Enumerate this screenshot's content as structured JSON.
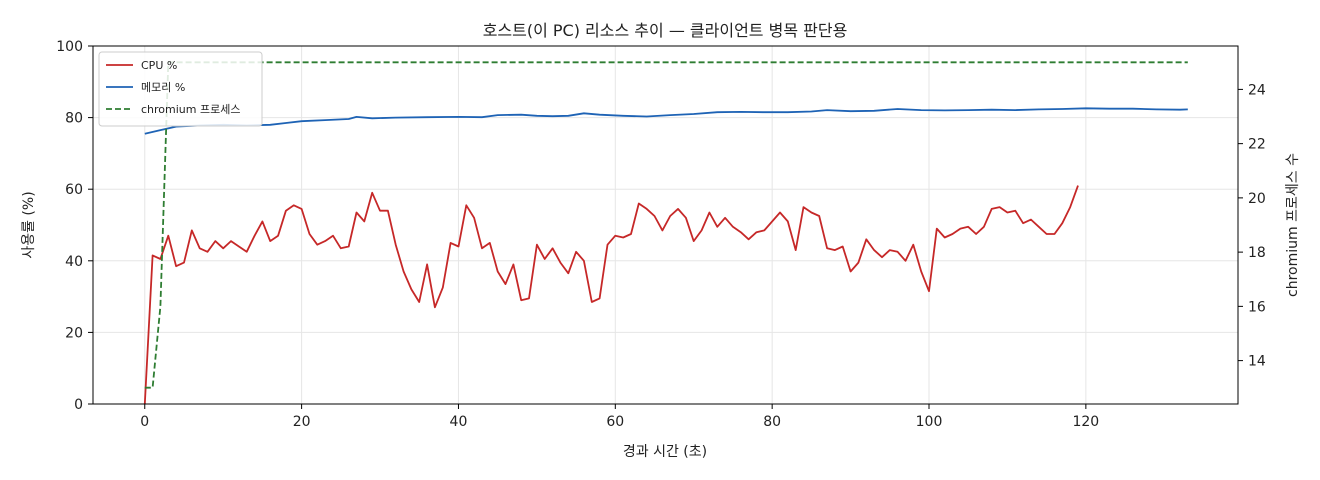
{
  "chart_data": {
    "type": "line",
    "title": "호스트(이 PC) 리소스 추이 — 클라이언트 병목 판단용",
    "xlabel": "경과 시간 (초)",
    "ylabel": "사용률 (%)",
    "y2label": "chromium 프로세스 수",
    "xlim": [
      -6.6,
      139.4
    ],
    "ylim": [
      0,
      100
    ],
    "y2lim": [
      12.4,
      25.6
    ],
    "xticks": [
      0,
      20,
      40,
      60,
      80,
      100,
      120
    ],
    "yticks": [
      0,
      20,
      40,
      60,
      80,
      100
    ],
    "y2ticks": [
      14,
      16,
      18,
      20,
      22,
      24
    ],
    "grid": true,
    "legend": "top-left",
    "series": [
      {
        "name": "CPU %",
        "axis": "left",
        "color": "#c62828",
        "style": "solid",
        "points": [
          [
            0,
            0
          ],
          [
            1,
            41.5
          ],
          [
            2,
            40.5
          ],
          [
            3,
            47
          ],
          [
            4,
            38.5
          ],
          [
            5,
            39.5
          ],
          [
            6,
            48.5
          ],
          [
            7,
            43.5
          ],
          [
            8,
            42.5
          ],
          [
            9,
            45.5
          ],
          [
            10,
            43.5
          ],
          [
            11,
            45.5
          ],
          [
            12,
            44
          ],
          [
            13,
            42.5
          ],
          [
            14,
            47
          ],
          [
            15,
            51
          ],
          [
            16,
            45.5
          ],
          [
            17,
            47
          ],
          [
            18,
            54
          ],
          [
            19,
            55.5
          ],
          [
            20,
            54.5
          ],
          [
            21,
            47.5
          ],
          [
            22,
            44.5
          ],
          [
            23,
            45.5
          ],
          [
            24,
            47
          ],
          [
            25,
            43.5
          ],
          [
            26,
            44
          ],
          [
            27,
            53.5
          ],
          [
            28,
            51
          ],
          [
            29,
            59
          ],
          [
            30,
            54
          ],
          [
            31,
            54
          ],
          [
            32,
            44.5
          ],
          [
            33,
            37
          ],
          [
            34,
            32
          ],
          [
            35,
            28.5
          ],
          [
            36,
            39
          ],
          [
            37,
            27
          ],
          [
            38,
            32.5
          ],
          [
            39,
            45
          ],
          [
            40,
            44
          ],
          [
            41,
            55.5
          ],
          [
            42,
            52
          ],
          [
            43,
            43.5
          ],
          [
            44,
            45
          ],
          [
            45,
            37
          ],
          [
            46,
            33.5
          ],
          [
            47,
            39
          ],
          [
            48,
            29
          ],
          [
            49,
            29.5
          ],
          [
            50,
            44.5
          ],
          [
            51,
            40.5
          ],
          [
            52,
            43.5
          ],
          [
            53,
            39.5
          ],
          [
            54,
            36.5
          ],
          [
            55,
            42.5
          ],
          [
            56,
            40
          ],
          [
            57,
            28.5
          ],
          [
            58,
            29.5
          ],
          [
            59,
            44.5
          ],
          [
            60,
            47
          ],
          [
            61,
            46.5
          ],
          [
            62,
            47.5
          ],
          [
            63,
            56
          ],
          [
            64,
            54.5
          ],
          [
            65,
            52.5
          ],
          [
            66,
            48.5
          ],
          [
            67,
            52.5
          ],
          [
            68,
            54.5
          ],
          [
            69,
            52
          ],
          [
            70,
            45.5
          ],
          [
            71,
            48.5
          ],
          [
            72,
            53.5
          ],
          [
            73,
            49.5
          ],
          [
            74,
            52
          ],
          [
            75,
            49.5
          ],
          [
            76,
            48
          ],
          [
            77,
            46
          ],
          [
            78,
            48
          ],
          [
            79,
            48.5
          ],
          [
            80,
            51
          ],
          [
            81,
            53.5
          ],
          [
            82,
            51
          ],
          [
            83,
            43
          ],
          [
            84,
            55
          ],
          [
            85,
            53.5
          ],
          [
            86,
            52.5
          ],
          [
            87,
            43.5
          ],
          [
            88,
            43
          ],
          [
            89,
            44
          ],
          [
            90,
            37
          ],
          [
            91,
            39.5
          ],
          [
            92,
            46
          ],
          [
            93,
            43
          ],
          [
            94,
            41
          ],
          [
            95,
            43
          ],
          [
            96,
            42.5
          ],
          [
            97,
            40
          ],
          [
            98,
            44.5
          ],
          [
            99,
            37
          ],
          [
            100,
            31.5
          ],
          [
            101,
            49
          ],
          [
            102,
            46.5
          ],
          [
            103,
            47.5
          ],
          [
            104,
            49
          ],
          [
            105,
            49.5
          ],
          [
            106,
            47.5
          ],
          [
            107,
            49.5
          ],
          [
            108,
            54.5
          ],
          [
            109,
            55
          ],
          [
            110,
            53.5
          ],
          [
            111,
            54
          ],
          [
            112,
            50.5
          ],
          [
            113,
            51.5
          ],
          [
            114,
            49.5
          ],
          [
            115,
            47.5
          ],
          [
            116,
            47.5
          ],
          [
            117,
            50.5
          ],
          [
            118,
            55
          ],
          [
            119,
            61
          ]
        ]
      },
      {
        "name": "메모리 %",
        "axis": "left",
        "color": "#1e63b5",
        "style": "solid",
        "points": [
          [
            0,
            75.5
          ],
          [
            2,
            76.5
          ],
          [
            4,
            77.5
          ],
          [
            7,
            77.8
          ],
          [
            10,
            78
          ],
          [
            13,
            77.8
          ],
          [
            16,
            78
          ],
          [
            18,
            78.5
          ],
          [
            20,
            79
          ],
          [
            23,
            79.3
          ],
          [
            26,
            79.6
          ],
          [
            27,
            80.2
          ],
          [
            29,
            79.8
          ],
          [
            32,
            80
          ],
          [
            36,
            80.1
          ],
          [
            40,
            80.2
          ],
          [
            43,
            80.1
          ],
          [
            45,
            80.7
          ],
          [
            48,
            80.8
          ],
          [
            50,
            80.5
          ],
          [
            52,
            80.4
          ],
          [
            54,
            80.5
          ],
          [
            56,
            81.2
          ],
          [
            58,
            80.8
          ],
          [
            61,
            80.5
          ],
          [
            64,
            80.3
          ],
          [
            67,
            80.7
          ],
          [
            70,
            81
          ],
          [
            73,
            81.5
          ],
          [
            76,
            81.6
          ],
          [
            79,
            81.5
          ],
          [
            82,
            81.5
          ],
          [
            85,
            81.7
          ],
          [
            87,
            82.1
          ],
          [
            90,
            81.8
          ],
          [
            93,
            81.9
          ],
          [
            96,
            82.4
          ],
          [
            99,
            82.1
          ],
          [
            102,
            82
          ],
          [
            105,
            82.1
          ],
          [
            108,
            82.2
          ],
          [
            111,
            82.1
          ],
          [
            114,
            82.3
          ],
          [
            117,
            82.4
          ],
          [
            120,
            82.6
          ],
          [
            123,
            82.5
          ],
          [
            126,
            82.5
          ],
          [
            129,
            82.3
          ],
          [
            132,
            82.2
          ],
          [
            133,
            82.3
          ]
        ]
      },
      {
        "name": "chromium 프로세스",
        "axis": "right",
        "color": "#2e7d32",
        "style": "dashed",
        "points": [
          [
            0,
            13
          ],
          [
            1,
            13
          ],
          [
            2,
            16
          ],
          [
            3,
            25
          ],
          [
            133,
            25
          ]
        ]
      }
    ]
  }
}
